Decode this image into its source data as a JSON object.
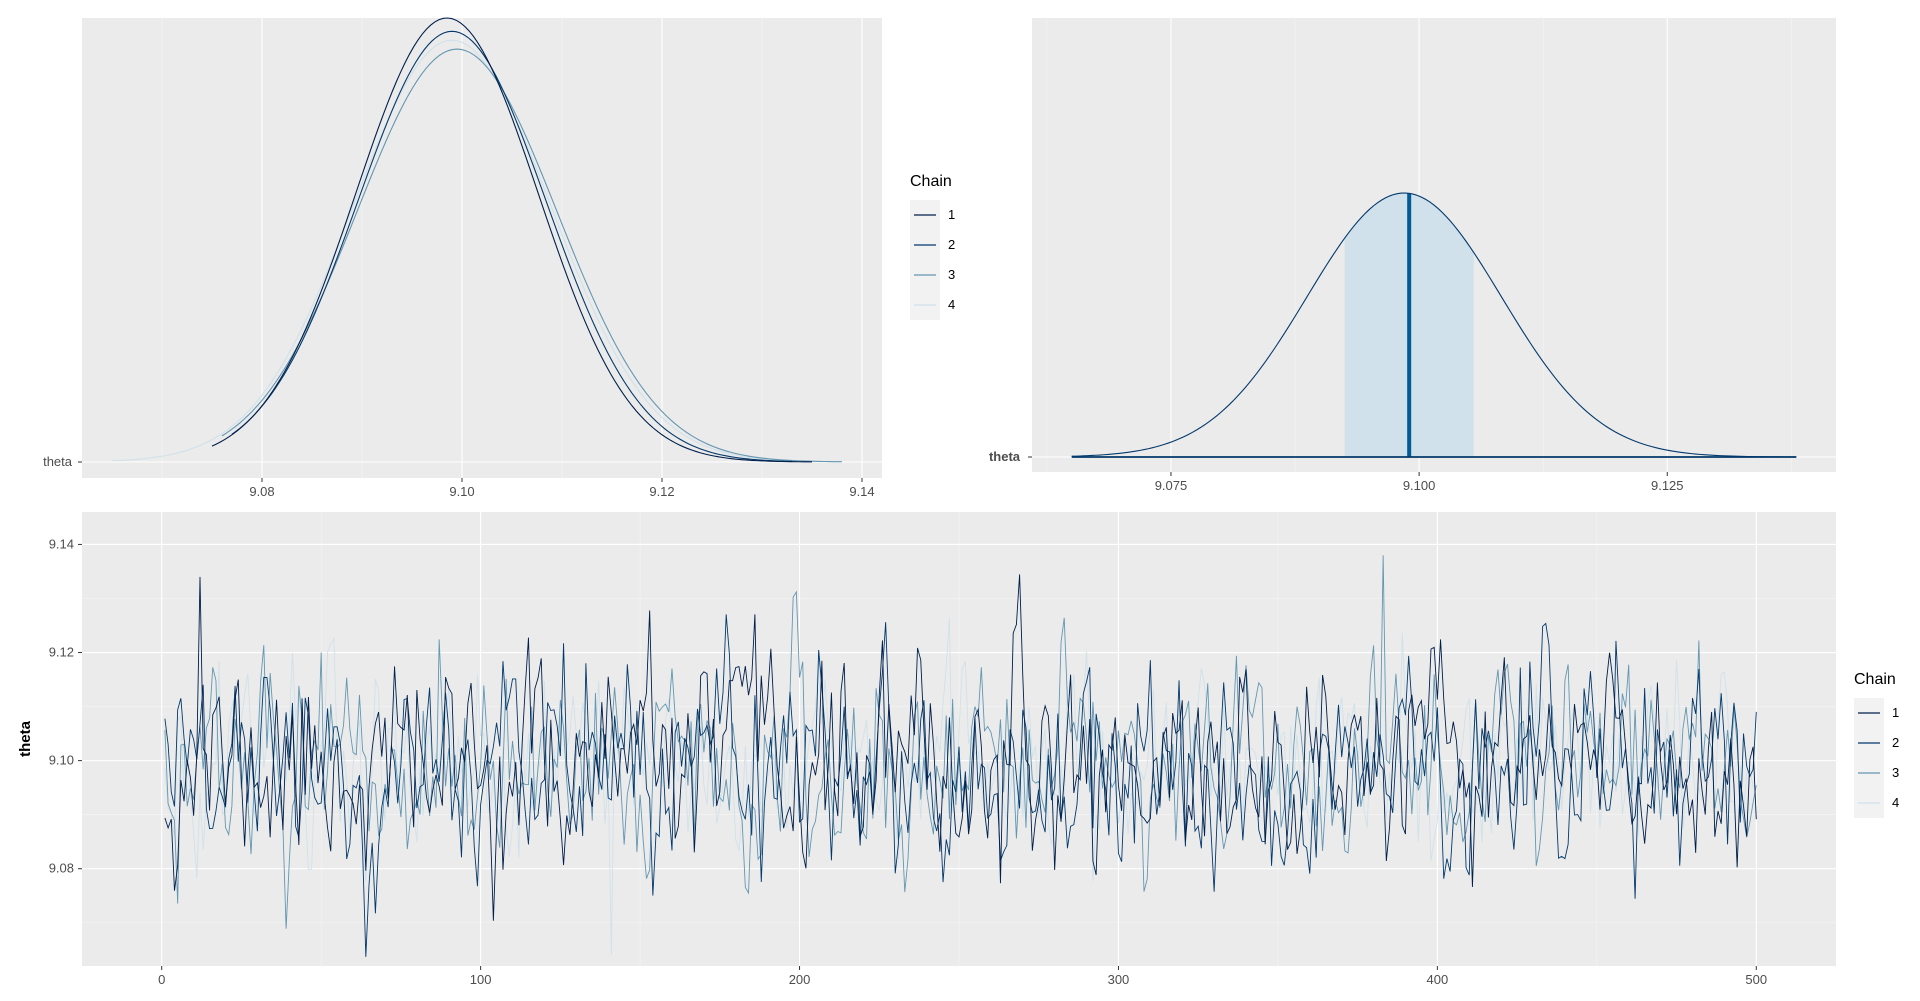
{
  "chart_data": [
    {
      "type": "line",
      "kind": "density-overlay",
      "ytick_label": "theta",
      "xlim": [
        9.062,
        9.142
      ],
      "xticks": [
        "9.08",
        "9.10",
        "9.12",
        "9.14"
      ],
      "legend": {
        "title": "Chain",
        "labels": [
          "1",
          "2",
          "3",
          "4"
        ],
        "placement": "right"
      },
      "colors": [
        "#011f4b",
        "#03396c",
        "#6497b1",
        "#d0e1ea"
      ],
      "grid": true,
      "series": [
        {
          "name": "1",
          "color": "#011f4b",
          "mean": 9.0985,
          "sd": 0.0091,
          "x_range": [
            9.075,
            9.135
          ],
          "peak": 1.0
        },
        {
          "name": "2",
          "color": "#03396c",
          "mean": 9.099,
          "sd": 0.0094,
          "x_range": [
            9.077,
            9.133
          ],
          "peak": 0.97
        },
        {
          "name": "3",
          "color": "#6497b1",
          "mean": 9.0995,
          "sd": 0.01,
          "x_range": [
            9.076,
            9.138
          ],
          "peak": 0.93
        },
        {
          "name": "4",
          "color": "#d0e1ea",
          "mean": 9.099,
          "sd": 0.0099,
          "x_range": [
            9.065,
            9.133
          ],
          "peak": 0.95
        }
      ]
    },
    {
      "type": "area",
      "kind": "posterior-interval",
      "ytick_label": "theta",
      "xlim": [
        9.061,
        9.142
      ],
      "xticks": [
        "9.075",
        "9.100",
        "9.125"
      ],
      "x_range": [
        9.065,
        9.138
      ],
      "median": 9.099,
      "mean": 9.0985,
      "sd": 0.0098,
      "interval": [
        9.0925,
        9.1055
      ],
      "line_color": "#03396c",
      "fill_color": "#d1e1ec",
      "median_color": "#005b96",
      "grid": true
    },
    {
      "type": "line",
      "kind": "trace",
      "ylabel": "theta",
      "xlim": [
        -25,
        525
      ],
      "ylim": [
        9.062,
        9.146
      ],
      "xticks": [
        "0",
        "100",
        "200",
        "300",
        "400",
        "500"
      ],
      "yticks": [
        "9.08",
        "9.10",
        "9.12",
        "9.14"
      ],
      "iterations": 500,
      "center": 9.099,
      "sd": 0.0095,
      "legend": {
        "title": "Chain",
        "labels": [
          "1",
          "2",
          "3",
          "4"
        ],
        "placement": "right"
      },
      "colors": [
        "#011f4b",
        "#03396c",
        "#6497b1",
        "#d0e1ea"
      ],
      "grid": true,
      "series": [
        {
          "name": "1",
          "color": "#011f4b",
          "seed": 11
        },
        {
          "name": "2",
          "color": "#03396c",
          "seed": 29
        },
        {
          "name": "3",
          "color": "#6497b1",
          "seed": 47
        },
        {
          "name": "4",
          "color": "#d0e1ea",
          "seed": 83
        }
      ],
      "highlights": [
        {
          "series": "3",
          "x": 383,
          "y": 9.138
        },
        {
          "series": "4",
          "x": 141,
          "y": 9.064
        },
        {
          "series": "1",
          "x": 12,
          "y": 9.134
        }
      ]
    }
  ]
}
